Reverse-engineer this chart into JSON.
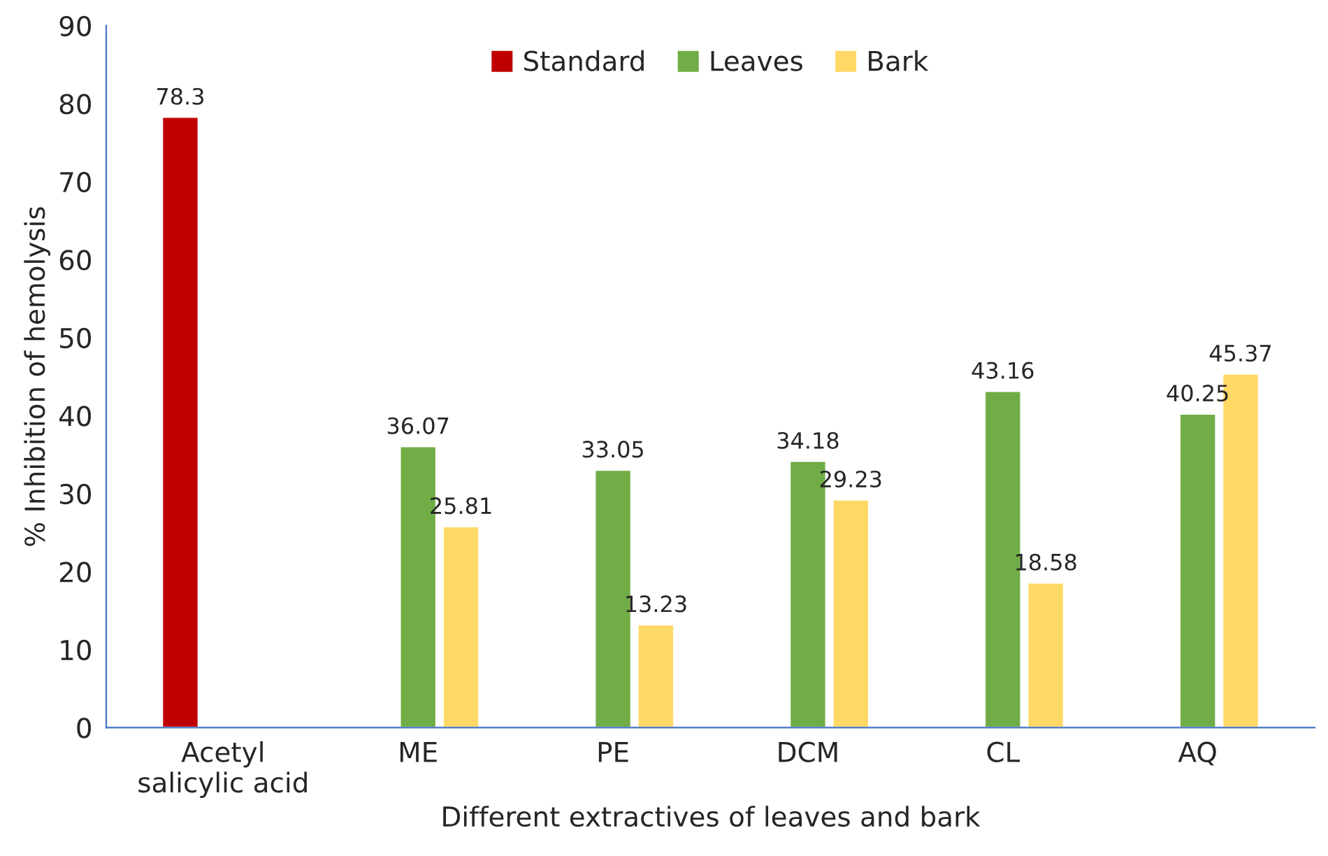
{
  "chart_data": {
    "type": "bar",
    "xlabel": "Different extractives of leaves and bark",
    "ylabel": "% Inhibition of hemolysis",
    "categories": [
      "Acetyl\nsalicylic acid",
      "ME",
      "PE",
      "DCM",
      "CL",
      "AQ"
    ],
    "series": [
      {
        "name": "Standard",
        "color": "#c00000",
        "values": [
          78.3,
          null,
          null,
          null,
          null,
          null
        ]
      },
      {
        "name": "Leaves",
        "color": "#70ad47",
        "values": [
          null,
          36.07,
          33.05,
          34.18,
          43.16,
          40.25
        ]
      },
      {
        "name": "Bark",
        "color": "#ffd966",
        "values": [
          null,
          25.81,
          13.23,
          29.23,
          18.58,
          45.37
        ]
      }
    ],
    "ylim": [
      0,
      90
    ],
    "yticks": [
      0,
      10,
      20,
      30,
      40,
      50,
      60,
      70,
      80,
      90
    ],
    "data_labels": true,
    "grid": false,
    "legend": "top"
  }
}
